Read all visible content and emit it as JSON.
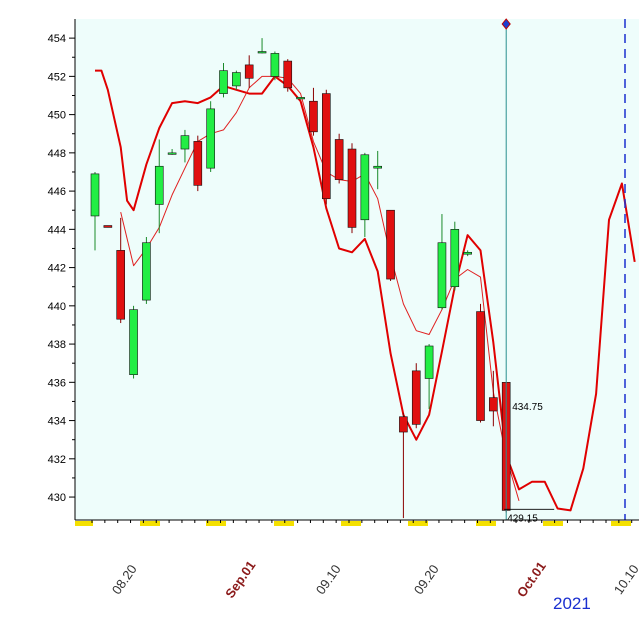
{
  "chart_data": {
    "type": "candlestick",
    "year_label": "2021",
    "ylim": [
      428.8,
      455
    ],
    "y_ticks": [
      430,
      432,
      434,
      436,
      438,
      440,
      442,
      444,
      446,
      448,
      450,
      452,
      454
    ],
    "y_tick_labels": [
      "430",
      "432",
      "434",
      "436",
      "438",
      "440",
      "442",
      "444",
      "446",
      "448",
      "450",
      "452",
      "454"
    ],
    "x_tick_labels": [
      {
        "text": "08.20",
        "month": false
      },
      {
        "text": "Sep.01",
        "month": true
      },
      {
        "text": "09.10",
        "month": false
      },
      {
        "text": "09.20",
        "month": false
      },
      {
        "text": "Oct.01",
        "month": true
      },
      {
        "text": "10.10",
        "month": false
      }
    ],
    "candles": [
      {
        "o": 444.7,
        "h": 447.0,
        "l": 442.9,
        "c": 446.9
      },
      {
        "o": 444.2,
        "h": 444.2,
        "l": 444.1,
        "c": 444.1
      },
      {
        "o": 442.9,
        "h": 444.6,
        "l": 439.1,
        "c": 439.3
      },
      {
        "o": 436.4,
        "h": 440.0,
        "l": 436.2,
        "c": 439.8
      },
      {
        "o": 440.3,
        "h": 443.6,
        "l": 440.1,
        "c": 443.3
      },
      {
        "o": 445.3,
        "h": 448.7,
        "l": 443.8,
        "c": 447.3
      },
      {
        "o": 448.0,
        "h": 448.2,
        "l": 447.9,
        "c": 448.0
      },
      {
        "o": 448.2,
        "h": 449.2,
        "l": 447.5,
        "c": 448.9
      },
      {
        "o": 448.6,
        "h": 448.9,
        "l": 446.0,
        "c": 446.3
      },
      {
        "o": 447.2,
        "h": 450.7,
        "l": 447.0,
        "c": 450.3
      },
      {
        "o": 451.1,
        "h": 452.7,
        "l": 450.9,
        "c": 452.3
      },
      {
        "o": 451.5,
        "h": 452.3,
        "l": 451.3,
        "c": 452.2
      },
      {
        "o": 452.6,
        "h": 453.1,
        "l": 451.4,
        "c": 451.9
      },
      {
        "o": 453.3,
        "h": 454.0,
        "l": 453.2,
        "c": 453.3
      },
      {
        "o": 452.0,
        "h": 453.3,
        "l": 451.8,
        "c": 453.2
      },
      {
        "o": 452.8,
        "h": 452.9,
        "l": 451.2,
        "c": 451.4
      },
      {
        "o": 450.9,
        "h": 450.9,
        "l": 450.8,
        "c": 450.9
      },
      {
        "o": 450.7,
        "h": 451.4,
        "l": 448.9,
        "c": 449.1
      },
      {
        "o": 451.1,
        "h": 451.3,
        "l": 445.3,
        "c": 445.6
      },
      {
        "o": 448.7,
        "h": 449.0,
        "l": 446.4,
        "c": 446.6
      },
      {
        "o": 448.2,
        "h": 448.5,
        "l": 443.8,
        "c": 444.1
      },
      {
        "o": 444.5,
        "h": 448.0,
        "l": 443.6,
        "c": 447.9
      },
      {
        "o": 447.2,
        "h": 448.1,
        "l": 446.1,
        "c": 447.3
      },
      {
        "o": 445.0,
        "h": 445.0,
        "l": 441.3,
        "c": 441.4
      },
      {
        "o": 434.2,
        "h": 434.4,
        "l": 428.9,
        "c": 433.4
      },
      {
        "o": 436.6,
        "h": 437.0,
        "l": 433.6,
        "c": 433.8
      },
      {
        "o": 436.2,
        "h": 438.0,
        "l": 434.6,
        "c": 437.9
      },
      {
        "o": 439.9,
        "h": 444.8,
        "l": 439.8,
        "c": 443.3
      },
      {
        "o": 441.0,
        "h": 444.4,
        "l": 440.8,
        "c": 444.0
      },
      {
        "o": 442.7,
        "h": 442.9,
        "l": 442.6,
        "c": 442.8
      },
      {
        "o": 439.7,
        "h": 440.1,
        "l": 433.9,
        "c": 434.0
      },
      {
        "o": 435.2,
        "h": 436.6,
        "l": 433.7,
        "c": 434.5
      },
      {
        "o": 436.0,
        "h": 436.0,
        "l": 429.2,
        "c": 429.3
      }
    ],
    "series": [
      {
        "role": "upper",
        "x": [
          0,
          0.5,
          1,
          2,
          2.5,
          3,
          4,
          5,
          6,
          7,
          8,
          9,
          10,
          11,
          12,
          13,
          14,
          15,
          16,
          17,
          18,
          19,
          20,
          21,
          22,
          23,
          24,
          25,
          26,
          27,
          28,
          29,
          30,
          31,
          32,
          33,
          34,
          35,
          36,
          37,
          38,
          39,
          40,
          41,
          42
        ],
        "y": [
          452.3,
          452.3,
          451.3,
          448.3,
          445.5,
          445.0,
          447.4,
          449.3,
          450.6,
          450.7,
          450.6,
          450.9,
          451.5,
          451.3,
          451.1,
          451.1,
          452.0,
          451.5,
          450.7,
          448.3,
          445.1,
          443.0,
          442.8,
          443.5,
          441.8,
          437.5,
          434.3,
          433.0,
          434.3,
          437.6,
          441.0,
          443.7,
          442.9,
          438.1,
          432.2,
          430.4,
          430.8,
          430.8,
          429.4,
          429.3,
          431.5,
          435.4,
          444.5,
          446.4,
          442.3
        ]
      },
      {
        "role": "lower",
        "x": [
          2,
          3,
          4,
          5,
          6,
          7,
          8,
          9,
          10,
          11,
          12,
          13,
          14,
          15,
          16,
          17,
          18,
          19,
          20,
          21,
          22,
          23,
          24,
          25,
          26,
          27,
          28,
          29,
          30,
          31,
          32,
          33
        ],
        "y": [
          444.9,
          442.1,
          443.0,
          444.1,
          445.8,
          447.2,
          448.6,
          449.0,
          449.2,
          450.1,
          451.4,
          452.0,
          452.0,
          451.9,
          451.1,
          448.6,
          447.0,
          446.6,
          446.5,
          446.9,
          445.6,
          442.6,
          440.1,
          438.7,
          438.5,
          439.8,
          441.4,
          441.9,
          441.5,
          435.5,
          432.1,
          429.8
        ]
      }
    ],
    "annotations": [
      {
        "text": "434.75",
        "value": 434.75
      },
      {
        "text": "429.15",
        "value": 429.15
      }
    ]
  }
}
